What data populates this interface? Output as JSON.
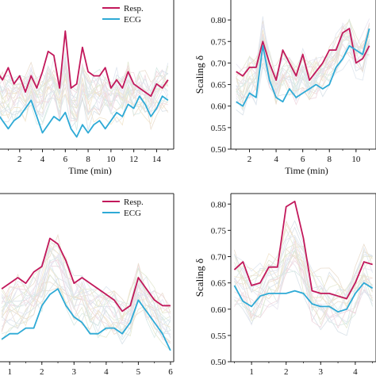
{
  "chart_data": [
    {
      "type": "line",
      "xlabel": "Time (min)",
      "ylabel": "",
      "xlim": [
        0,
        15.5
      ],
      "ylim": [
        0.48,
        0.85
      ],
      "xticks": [
        2,
        4,
        6,
        8,
        10,
        12,
        14
      ],
      "yticks": [],
      "legend": "top-right",
      "x": [
        0,
        0.5,
        1,
        1.5,
        2,
        2.5,
        3,
        3.5,
        4,
        4.5,
        5,
        5.5,
        6,
        6.5,
        7,
        7.5,
        8,
        8.5,
        9,
        9.5,
        10,
        10.5,
        11,
        11.5,
        12,
        12.5,
        13,
        13.5,
        14,
        14.5,
        15
      ],
      "series": [
        {
          "name": "Resp.",
          "color": "#c2185b",
          "values": [
            0.67,
            0.65,
            0.68,
            0.64,
            0.66,
            0.62,
            0.66,
            0.63,
            0.67,
            0.72,
            0.71,
            0.63,
            0.77,
            0.63,
            0.64,
            0.73,
            0.67,
            0.66,
            0.66,
            0.68,
            0.63,
            0.65,
            0.63,
            0.67,
            0.64,
            0.63,
            0.62,
            0.61,
            0.64,
            0.63,
            0.65
          ]
        },
        {
          "name": "ECG",
          "color": "#2eaad6",
          "values": [
            0.57,
            0.55,
            0.53,
            0.55,
            0.56,
            0.58,
            0.6,
            0.56,
            0.52,
            0.54,
            0.56,
            0.55,
            0.57,
            0.53,
            0.51,
            0.54,
            0.52,
            0.54,
            0.55,
            0.53,
            0.55,
            0.57,
            0.56,
            0.59,
            0.58,
            0.61,
            0.59,
            0.56,
            0.58,
            0.61,
            0.6
          ]
        }
      ]
    },
    {
      "type": "line",
      "xlabel": "Time (min)",
      "ylabel": "Scaling δ",
      "xlim": [
        0.6,
        11.5
      ],
      "ylim": [
        0.5,
        0.85
      ],
      "xticks": [
        2,
        4,
        6,
        8,
        10
      ],
      "yticks": [
        0.5,
        0.55,
        0.6,
        0.65,
        0.7,
        0.75,
        0.8
      ],
      "legend": "none",
      "x": [
        1,
        1.5,
        2,
        2.5,
        3,
        3.5,
        4,
        4.5,
        5,
        5.5,
        6,
        6.5,
        7,
        7.5,
        8,
        8.5,
        9,
        9.5,
        10,
        10.5,
        11
      ],
      "series": [
        {
          "name": "",
          "color": "#c2185b",
          "values": [
            0.68,
            0.67,
            0.69,
            0.69,
            0.75,
            0.7,
            0.66,
            0.73,
            0.7,
            0.67,
            0.72,
            0.66,
            0.68,
            0.7,
            0.73,
            0.73,
            0.77,
            0.78,
            0.7,
            0.71,
            0.74
          ]
        },
        {
          "name": "",
          "color": "#2eaad6",
          "values": [
            0.61,
            0.6,
            0.63,
            0.62,
            0.74,
            0.66,
            0.62,
            0.61,
            0.64,
            0.62,
            0.63,
            0.64,
            0.65,
            0.64,
            0.65,
            0.69,
            0.71,
            0.74,
            0.73,
            0.72,
            0.78
          ]
        }
      ]
    },
    {
      "type": "line",
      "xlabel": "Time (min)",
      "ylabel": "",
      "xlim": [
        0.6,
        6.1
      ],
      "ylim": [
        0.55,
        0.85
      ],
      "xticks": [
        1,
        2,
        3,
        4,
        5,
        6
      ],
      "yticks": [],
      "legend": "top-right",
      "x": [
        0.75,
        1.0,
        1.25,
        1.5,
        1.75,
        2.0,
        2.25,
        2.5,
        2.75,
        3.0,
        3.25,
        3.5,
        3.75,
        4.0,
        4.25,
        4.5,
        4.75,
        5.0,
        5.25,
        5.5,
        5.75,
        6.0
      ],
      "series": [
        {
          "name": "Resp.",
          "color": "#c2185b",
          "values": [
            0.68,
            0.69,
            0.7,
            0.69,
            0.71,
            0.72,
            0.77,
            0.76,
            0.73,
            0.69,
            0.7,
            0.69,
            0.68,
            0.67,
            0.66,
            0.64,
            0.65,
            0.7,
            0.68,
            0.66,
            0.65,
            0.65
          ]
        },
        {
          "name": "ECG",
          "color": "#2eaad6",
          "values": [
            0.59,
            0.6,
            0.6,
            0.61,
            0.61,
            0.65,
            0.67,
            0.68,
            0.65,
            0.63,
            0.62,
            0.6,
            0.6,
            0.61,
            0.61,
            0.6,
            0.62,
            0.66,
            0.64,
            0.62,
            0.6,
            0.57
          ]
        }
      ]
    },
    {
      "type": "line",
      "xlabel": "Time (min)",
      "ylabel": "Scaling δ",
      "xlim": [
        0.4,
        4.6
      ],
      "ylim": [
        0.5,
        0.82
      ],
      "xticks": [
        1,
        2,
        3,
        4
      ],
      "yticks": [
        0.5,
        0.55,
        0.6,
        0.65,
        0.7,
        0.75,
        0.8
      ],
      "legend": "none",
      "x": [
        0.5,
        0.75,
        1.0,
        1.25,
        1.5,
        1.75,
        2.0,
        2.25,
        2.5,
        2.75,
        3.0,
        3.25,
        3.5,
        3.75,
        4.0,
        4.25,
        4.5
      ],
      "series": [
        {
          "name": "",
          "color": "#c2185b",
          "values": [
            0.675,
            0.69,
            0.645,
            0.65,
            0.68,
            0.68,
            0.795,
            0.805,
            0.735,
            0.635,
            0.63,
            0.63,
            0.625,
            0.62,
            0.65,
            0.69,
            0.685
          ]
        },
        {
          "name": "",
          "color": "#2eaad6",
          "values": [
            0.645,
            0.615,
            0.605,
            0.625,
            0.63,
            0.63,
            0.63,
            0.635,
            0.63,
            0.61,
            0.605,
            0.605,
            0.595,
            0.6,
            0.63,
            0.65,
            0.64
          ]
        }
      ]
    }
  ]
}
